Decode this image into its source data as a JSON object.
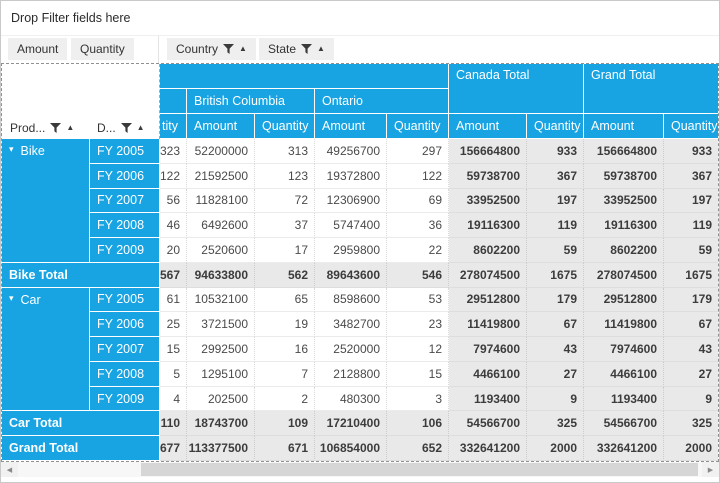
{
  "filter_bar": {
    "text": "Drop Filter fields here"
  },
  "value_chips": [
    {
      "label": "Amount"
    },
    {
      "label": "Quantity"
    }
  ],
  "column_chips": [
    {
      "label": "Country"
    },
    {
      "label": "State"
    }
  ],
  "row_chips": [
    {
      "label": "Prod..."
    },
    {
      "label": "D..."
    }
  ],
  "colors": {
    "accent_blue": "#18a3e2",
    "total_gray": "#e9e9e9"
  },
  "grid": {
    "group_headers": {
      "canada_total": "Canada Total",
      "grand_total": "Grand Total",
      "british_columbia": "British Columbia",
      "ontario": "Ontario"
    },
    "measures": [
      "tity",
      "Amount",
      "Quantity",
      "Amount",
      "Quantity",
      "Amount",
      "Quantity",
      "Amount",
      "Quantity"
    ],
    "rows": [
      {
        "kind": "data",
        "group": "Bike",
        "groupStart": true,
        "groupSpan": 5,
        "date": "FY 2005",
        "values": [
          "323",
          "52200000",
          "313",
          "49256700",
          "297",
          "156664800",
          "933",
          "156664800",
          "933"
        ]
      },
      {
        "kind": "data",
        "date": "FY 2006",
        "values": [
          "122",
          "21592500",
          "123",
          "19372800",
          "122",
          "59738700",
          "367",
          "59738700",
          "367"
        ]
      },
      {
        "kind": "data",
        "date": "FY 2007",
        "values": [
          "56",
          "11828100",
          "72",
          "12306900",
          "69",
          "33952500",
          "197",
          "33952500",
          "197"
        ]
      },
      {
        "kind": "data",
        "date": "FY 2008",
        "values": [
          "46",
          "6492600",
          "37",
          "5747400",
          "36",
          "19116300",
          "119",
          "19116300",
          "119"
        ]
      },
      {
        "kind": "data",
        "date": "FY 2009",
        "values": [
          "20",
          "2520600",
          "17",
          "2959800",
          "22",
          "8602200",
          "59",
          "8602200",
          "59"
        ]
      },
      {
        "kind": "total",
        "label": "Bike Total",
        "values": [
          "567",
          "94633800",
          "562",
          "89643600",
          "546",
          "278074500",
          "1675",
          "278074500",
          "1675"
        ]
      },
      {
        "kind": "data",
        "group": "Car",
        "groupStart": true,
        "groupSpan": 5,
        "date": "FY 2005",
        "values": [
          "61",
          "10532100",
          "65",
          "8598600",
          "53",
          "29512800",
          "179",
          "29512800",
          "179"
        ]
      },
      {
        "kind": "data",
        "date": "FY 2006",
        "values": [
          "25",
          "3721500",
          "19",
          "3482700",
          "23",
          "11419800",
          "67",
          "11419800",
          "67"
        ]
      },
      {
        "kind": "data",
        "date": "FY 2007",
        "values": [
          "15",
          "2992500",
          "16",
          "2520000",
          "12",
          "7974600",
          "43",
          "7974600",
          "43"
        ]
      },
      {
        "kind": "data",
        "date": "FY 2008",
        "values": [
          "5",
          "1295100",
          "7",
          "2128800",
          "15",
          "4466100",
          "27",
          "4466100",
          "27"
        ]
      },
      {
        "kind": "data",
        "date": "FY 2009",
        "values": [
          "4",
          "202500",
          "2",
          "480300",
          "3",
          "1193400",
          "9",
          "1193400",
          "9"
        ]
      },
      {
        "kind": "total",
        "label": "Car Total",
        "values": [
          "110",
          "18743700",
          "109",
          "17210400",
          "106",
          "54566700",
          "325",
          "54566700",
          "325"
        ]
      },
      {
        "kind": "total",
        "label": "Grand Total",
        "values": [
          "677",
          "113377500",
          "671",
          "106854000",
          "652",
          "332641200",
          "2000",
          "332641200",
          "2000"
        ]
      }
    ]
  }
}
